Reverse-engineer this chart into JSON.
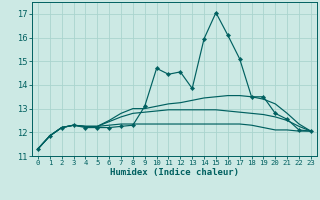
{
  "xlabel": "Humidex (Indice chaleur)",
  "bg_color": "#cce9e4",
  "grid_color": "#aad4ce",
  "line_color": "#006060",
  "xlim": [
    -0.5,
    23.5
  ],
  "ylim": [
    11,
    17.5
  ],
  "yticks": [
    11,
    12,
    13,
    14,
    15,
    16,
    17
  ],
  "xticks": [
    0,
    1,
    2,
    3,
    4,
    5,
    6,
    7,
    8,
    9,
    10,
    11,
    12,
    13,
    14,
    15,
    16,
    17,
    18,
    19,
    20,
    21,
    22,
    23
  ],
  "series": [
    [
      11.3,
      11.85,
      12.2,
      12.3,
      12.2,
      12.2,
      12.2,
      12.25,
      12.3,
      13.1,
      14.7,
      14.45,
      14.55,
      13.85,
      15.95,
      17.05,
      16.1,
      15.1,
      13.5,
      13.5,
      12.8,
      12.55,
      12.1,
      12.05
    ],
    [
      11.3,
      11.85,
      12.2,
      12.3,
      12.25,
      12.25,
      12.5,
      12.8,
      13.0,
      13.0,
      13.1,
      13.2,
      13.25,
      13.35,
      13.45,
      13.5,
      13.55,
      13.55,
      13.5,
      13.4,
      13.2,
      12.8,
      12.35,
      12.05
    ],
    [
      11.3,
      11.85,
      12.2,
      12.3,
      12.25,
      12.25,
      12.45,
      12.65,
      12.8,
      12.85,
      12.9,
      12.95,
      12.95,
      12.95,
      12.95,
      12.95,
      12.9,
      12.85,
      12.8,
      12.75,
      12.65,
      12.5,
      12.25,
      12.05
    ],
    [
      11.3,
      11.85,
      12.2,
      12.3,
      12.25,
      12.25,
      12.3,
      12.35,
      12.35,
      12.35,
      12.35,
      12.35,
      12.35,
      12.35,
      12.35,
      12.35,
      12.35,
      12.35,
      12.3,
      12.2,
      12.1,
      12.1,
      12.05,
      12.05
    ]
  ],
  "xlabel_fontsize": 6.5,
  "xtick_fontsize": 5.2,
  "ytick_fontsize": 6.0,
  "line_width": 0.85,
  "marker_size": 2.2
}
